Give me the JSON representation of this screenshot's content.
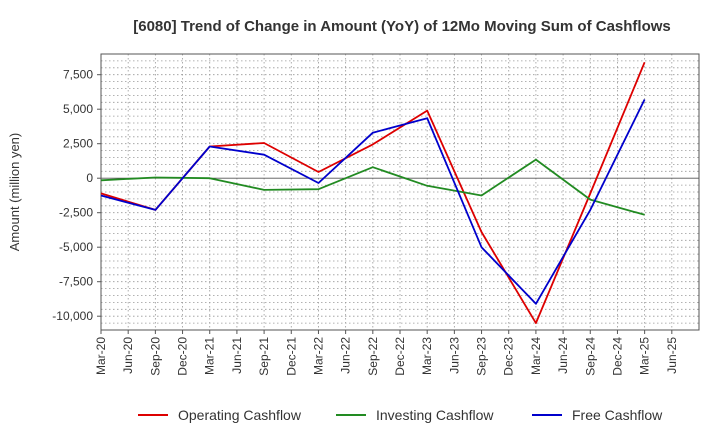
{
  "chart_data": {
    "type": "line",
    "title": "[6080]  Trend of Change in Amount (YoY) of 12Mo Moving Sum of Cashflows",
    "xlabel": "",
    "ylabel": "Amount (million yen)",
    "ylim": [
      -11000,
      9000
    ],
    "yticks": [
      7500,
      5000,
      2500,
      0,
      -2500,
      -5000,
      -7500,
      -10000
    ],
    "ytick_labels": [
      "7,500",
      "5,000",
      "2,500",
      "0",
      "-2,500",
      "-5,000",
      "-7,500",
      "-10,000"
    ],
    "categories": [
      "Mar-20",
      "Jun-20",
      "Sep-20",
      "Dec-20",
      "Mar-21",
      "Jun-21",
      "Sep-21",
      "Dec-21",
      "Mar-22",
      "Jun-22",
      "Sep-22",
      "Dec-22",
      "Mar-23",
      "Jun-23",
      "Sep-23",
      "Dec-23",
      "Mar-24",
      "Jun-24",
      "Sep-24",
      "Dec-24",
      "Mar-25",
      "Jun-25"
    ],
    "grid": true,
    "legend_position": "bottom",
    "series": [
      {
        "name": "Operating Cashflow",
        "color": "#dd0000",
        "values": [
          -1100,
          null,
          -2300,
          null,
          2300,
          null,
          2550,
          null,
          450,
          null,
          2450,
          null,
          4900,
          null,
          -3900,
          null,
          -10500,
          null,
          -1100,
          null,
          8400,
          null
        ]
      },
      {
        "name": "Investing Cashflow",
        "color": "#228b22",
        "values": [
          -150,
          null,
          50,
          null,
          0,
          null,
          -850,
          null,
          -800,
          null,
          800,
          null,
          -550,
          null,
          -1250,
          null,
          1350,
          null,
          -1550,
          null,
          -2650,
          null
        ]
      },
      {
        "name": "Free Cashflow",
        "color": "#0000cc",
        "values": [
          -1250,
          null,
          -2300,
          null,
          2300,
          null,
          1700,
          null,
          -350,
          null,
          3300,
          null,
          4350,
          null,
          -5000,
          null,
          -9100,
          null,
          -2300,
          null,
          5700,
          null
        ]
      }
    ]
  }
}
